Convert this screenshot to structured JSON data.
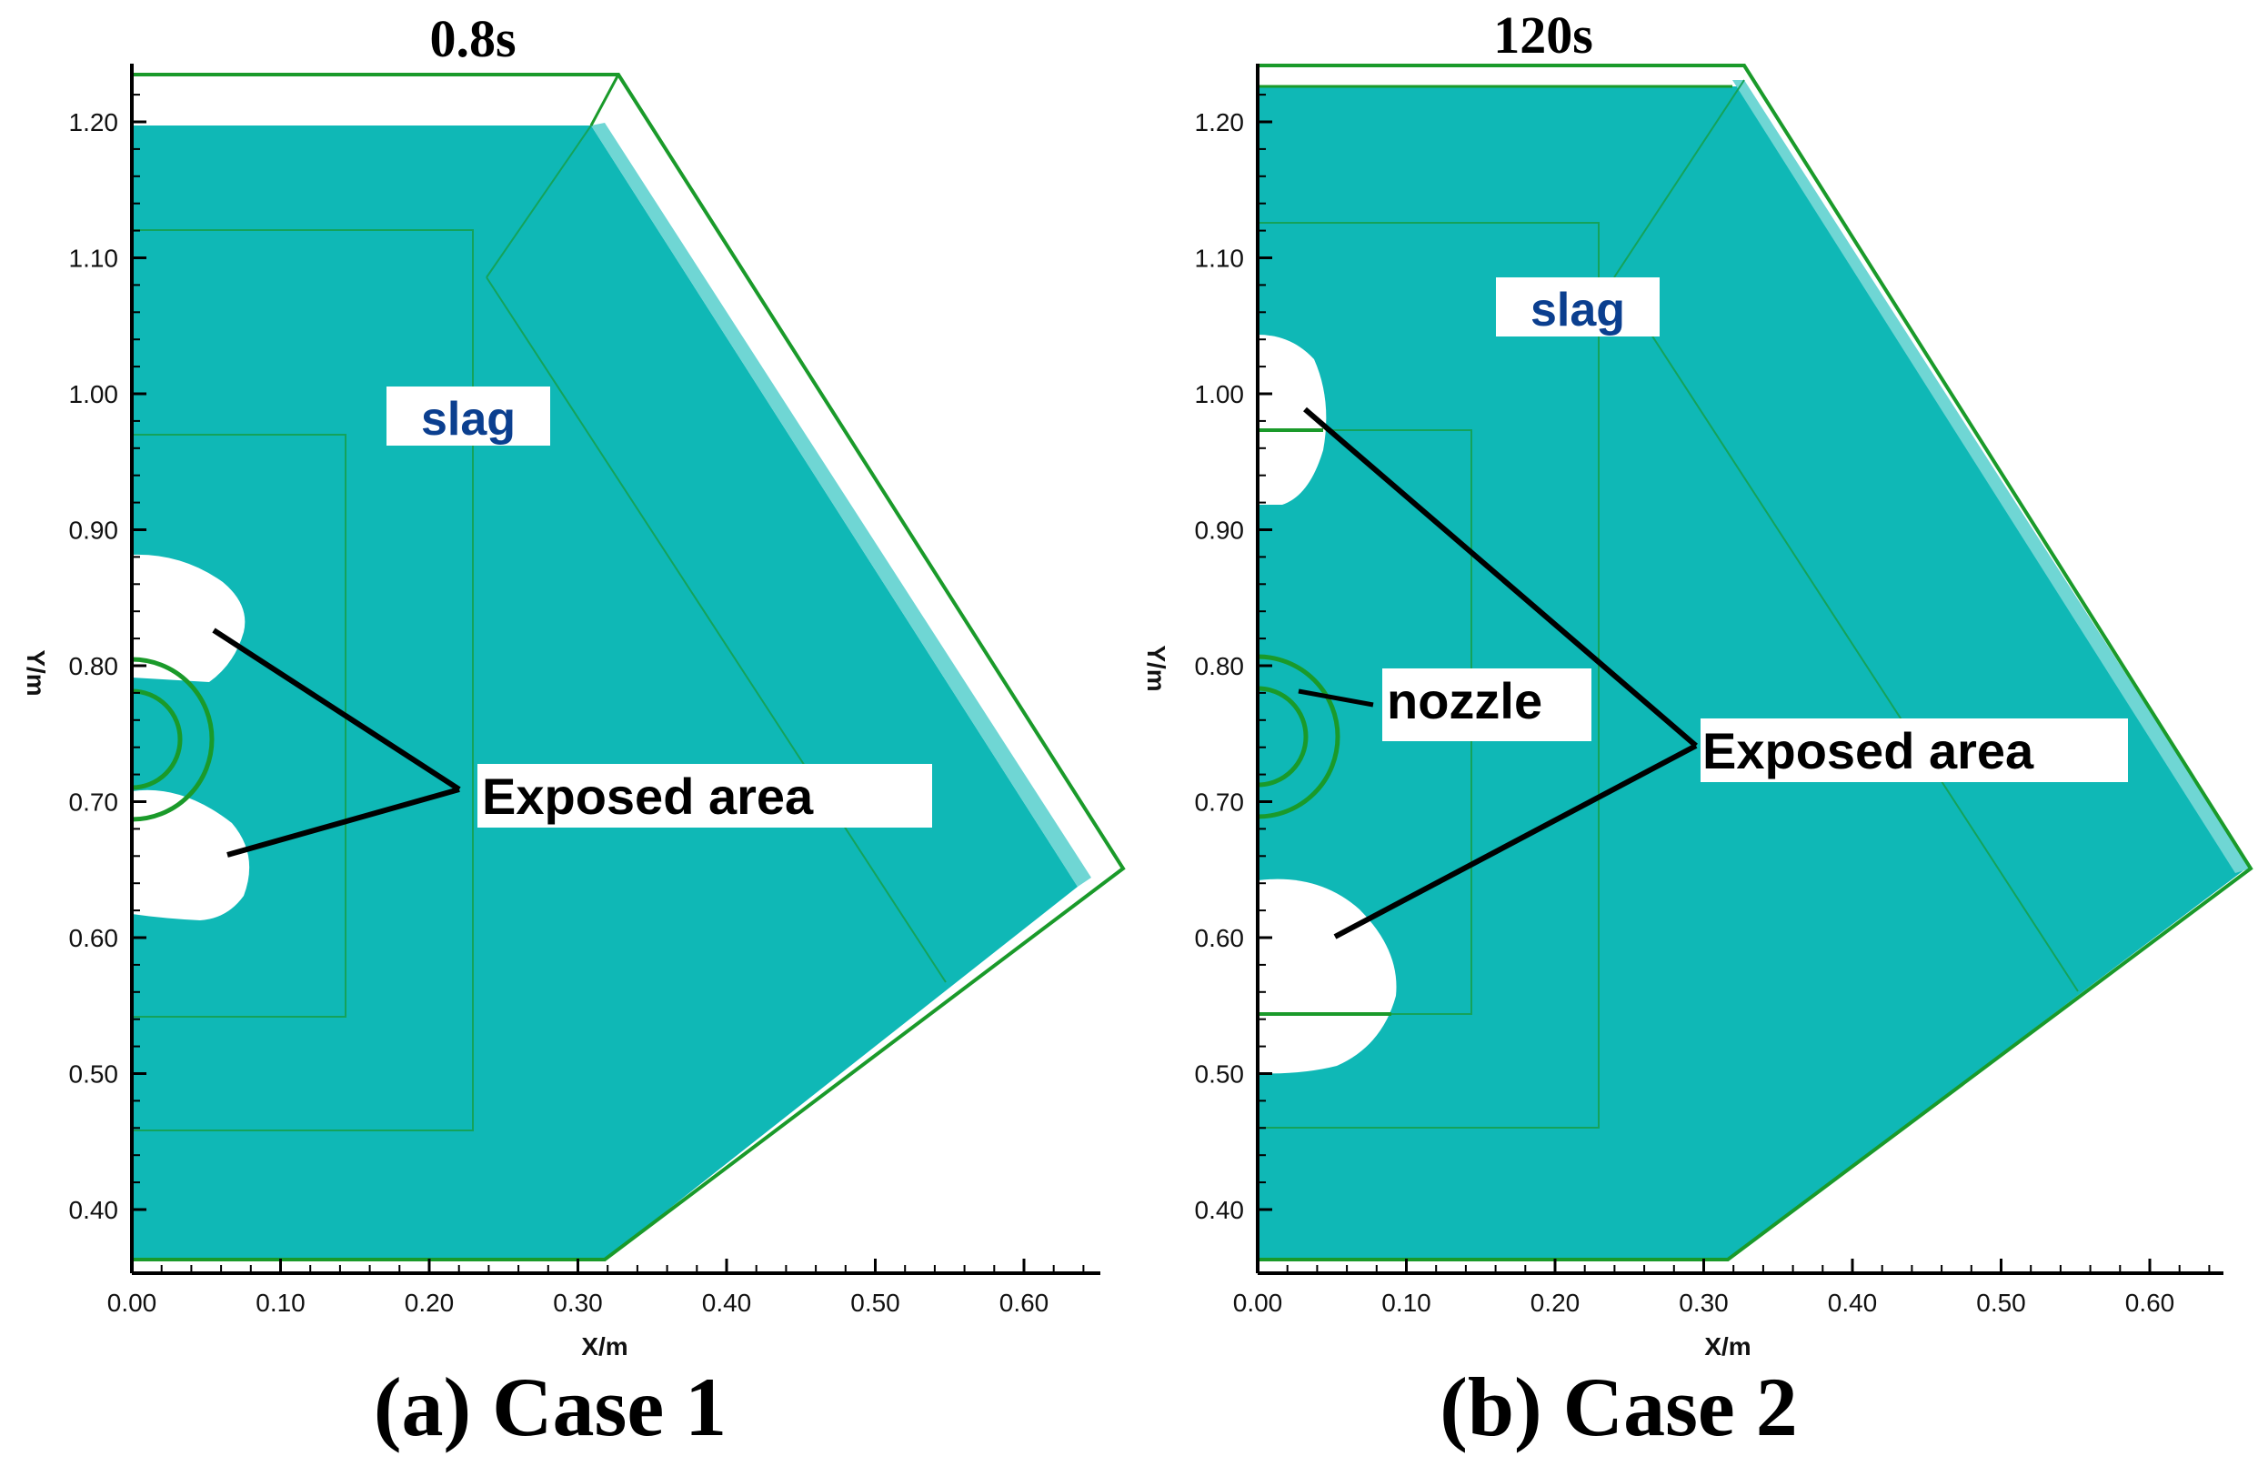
{
  "panels": [
    {
      "id": "a",
      "time_label": "0.8s",
      "caption": "(a) Case 1",
      "slag_label": "slag",
      "callout_label": "Exposed area",
      "nozzle_label": "",
      "x_axis_label": "X/m",
      "y_axis_label": "Y/m",
      "x_ticks": [
        "0.00",
        "0.10",
        "0.20",
        "0.30",
        "0.40",
        "0.50",
        "0.60"
      ],
      "y_ticks": [
        "0.40",
        "0.50",
        "0.60",
        "0.70",
        "0.80",
        "0.90",
        "1.00",
        "1.10",
        "1.20"
      ]
    },
    {
      "id": "b",
      "time_label": "120s",
      "caption": "(b) Case 2",
      "slag_label": "slag",
      "callout_label": "Exposed area",
      "nozzle_label": "nozzle",
      "x_axis_label": "X/m",
      "y_axis_label": "Y/m",
      "x_ticks": [
        "0.00",
        "0.10",
        "0.20",
        "0.30",
        "0.40",
        "0.50",
        "0.60"
      ],
      "y_ticks": [
        "0.40",
        "0.50",
        "0.60",
        "0.70",
        "0.80",
        "0.90",
        "1.00",
        "1.10",
        "1.20"
      ]
    }
  ],
  "colors": {
    "slag": "#0fb8b6",
    "slag_dark": "#0aa7a5",
    "outline": "#1a9a2a",
    "exposed": "#ffffff",
    "slag_text": "#0b3f8f"
  }
}
